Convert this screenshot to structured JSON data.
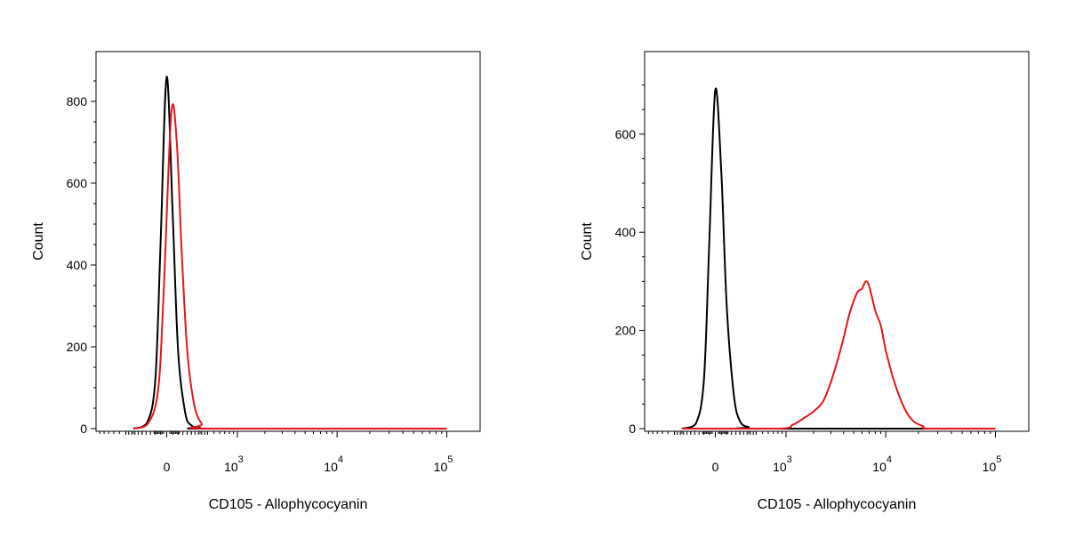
{
  "colors": {
    "control": "#000000",
    "stained": "#e8141a",
    "axis": "#000000",
    "background": "#ffffff"
  },
  "chart_data": [
    {
      "type": "line",
      "title": "",
      "xlabel": "CD105 - Allophycocyanin",
      "ylabel": "Count",
      "xscale": "biexponential",
      "ylim": [
        0,
        900
      ],
      "grid": false,
      "legend": "none",
      "y_ticks": [
        0,
        200,
        400,
        600,
        800
      ],
      "x_ticks": [
        {
          "value": 0,
          "base": "0",
          "exp": ""
        },
        {
          "value": 1000,
          "base": "10",
          "exp": "3"
        },
        {
          "value": 10000,
          "base": "10",
          "exp": "4"
        },
        {
          "value": 100000,
          "base": "10",
          "exp": "5"
        }
      ],
      "series": [
        {
          "color_key": "control",
          "x": [
            -300,
            -150,
            -80,
            -40,
            0,
            40,
            80,
            140,
            200,
            300,
            400,
            100000
          ],
          "y": [
            0,
            15,
            120,
            460,
            860,
            520,
            190,
            40,
            8,
            2,
            0,
            0
          ]
        },
        {
          "color_key": "stained",
          "x": [
            -300,
            -150,
            -60,
            -20,
            30,
            70,
            110,
            160,
            230,
            320,
            450,
            100000
          ],
          "y": [
            0,
            10,
            90,
            330,
            770,
            700,
            430,
            190,
            60,
            12,
            0,
            0
          ]
        }
      ]
    },
    {
      "type": "line",
      "title": "",
      "xlabel": "CD105 - Allophycocyanin",
      "ylabel": "Count",
      "xscale": "biexponential",
      "ylim": [
        0,
        750
      ],
      "grid": false,
      "legend": "none",
      "y_ticks": [
        0,
        200,
        400,
        600
      ],
      "x_ticks": [
        {
          "value": 0,
          "base": "0",
          "exp": ""
        },
        {
          "value": 1000,
          "base": "10",
          "exp": "3"
        },
        {
          "value": 10000,
          "base": "10",
          "exp": "4"
        },
        {
          "value": 100000,
          "base": "10",
          "exp": "5"
        }
      ],
      "series": [
        {
          "color_key": "control",
          "x": [
            -300,
            -150,
            -80,
            -40,
            0,
            40,
            80,
            140,
            200,
            300,
            400,
            100000
          ],
          "y": [
            0,
            10,
            100,
            380,
            690,
            520,
            250,
            70,
            15,
            3,
            0,
            0
          ]
        },
        {
          "color_key": "stained",
          "x": [
            -300,
            800,
            1200,
            1600,
            2000,
            2500,
            3000,
            3500,
            4000,
            4500,
            5000,
            5500,
            6000,
            6500,
            7000,
            8000,
            9000,
            10000,
            12000,
            15000,
            18000,
            22000,
            25000,
            100000
          ],
          "y": [
            0,
            0,
            8,
            22,
            35,
            55,
            95,
            140,
            185,
            230,
            260,
            280,
            285,
            300,
            290,
            240,
            210,
            160,
            95,
            40,
            15,
            5,
            0,
            0
          ]
        }
      ]
    }
  ]
}
